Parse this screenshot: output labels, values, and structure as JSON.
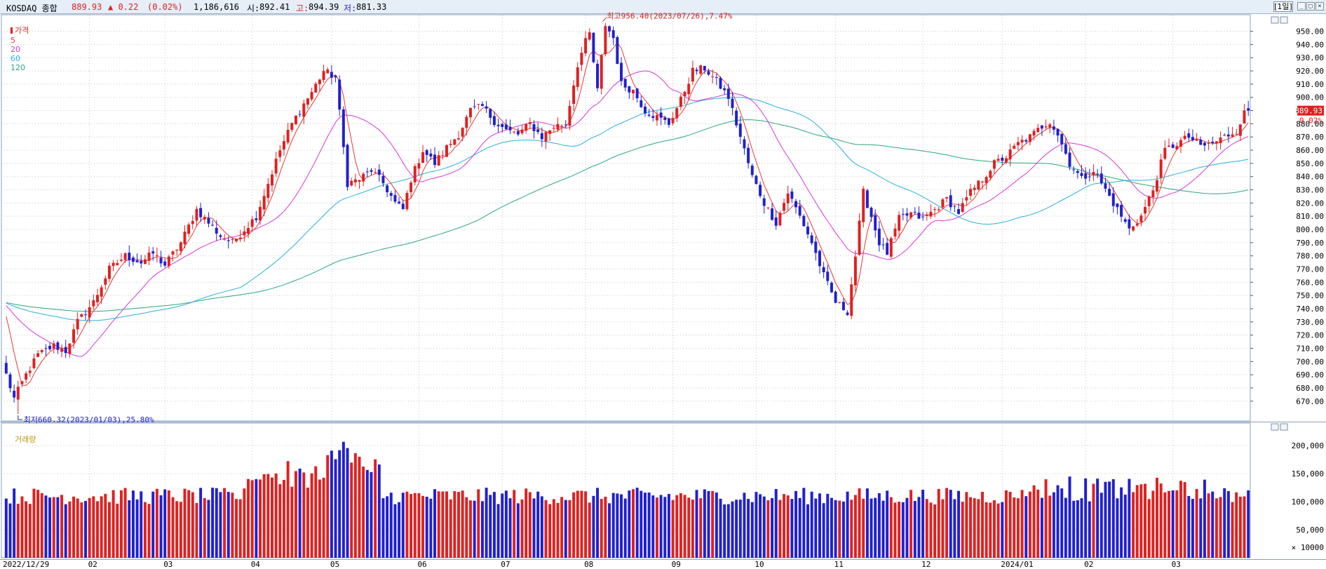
{
  "header": {
    "index_name": "KOSDAQ 종합",
    "price": "889.93",
    "change": "▲ 0.22",
    "change_pct": "(0.02%)",
    "volume": "1,186,616",
    "open_label": "시:",
    "open": "892.41",
    "high_label": "고:",
    "high": "894.39",
    "low_label": "저:",
    "low": "881.33",
    "period_button": "[1일]",
    "colors": {
      "up": "#e02020",
      "down": "#2020d0"
    }
  },
  "price_panel": {
    "legend": {
      "price_label": "가격",
      "ma5_label": "5",
      "ma20_label": "20",
      "ma60_label": "60",
      "ma120_label": "120"
    },
    "max_annotation": "최고956.40(2023/07/26),7.47%",
    "min_annotation": "최저660.32(2023/01/03),25.80%",
    "current_price_tag": "889.93",
    "current_change_tag": "0.02%"
  },
  "volume_panel": {
    "legend": "거래량",
    "unit": "× 10000"
  },
  "chart_data": {
    "type": "candlestick",
    "price_axis": {
      "ticks": [
        "670.00",
        "680.00",
        "690.00",
        "700.00",
        "710.00",
        "720.00",
        "730.00",
        "740.00",
        "750.00",
        "760.00",
        "770.00",
        "780.00",
        "790.00",
        "800.00",
        "810.00",
        "820.00",
        "830.00",
        "840.00",
        "850.00",
        "860.00",
        "870.00",
        "880.00",
        "890.00",
        "900.00",
        "910.00",
        "920.00",
        "930.00",
        "940.00",
        "950.00"
      ],
      "range": [
        655,
        962
      ]
    },
    "volume_axis": {
      "ticks": [
        "50,000",
        "100,000",
        "150,000",
        "200,000"
      ],
      "range": [
        0,
        230000
      ]
    },
    "x_axis_labels": [
      "2022/12/29",
      "02",
      "03",
      "04",
      "05",
      "06",
      "07",
      "08",
      "09",
      "10",
      "11",
      "12",
      "2024/01",
      "02",
      "03"
    ],
    "price_anchors": [
      [
        0,
        690
      ],
      [
        2,
        672
      ],
      [
        5,
        690
      ],
      [
        8,
        705
      ],
      [
        12,
        712
      ],
      [
        15,
        708
      ],
      [
        18,
        730
      ],
      [
        22,
        745
      ],
      [
        26,
        770
      ],
      [
        30,
        780
      ],
      [
        34,
        775
      ],
      [
        37,
        782
      ],
      [
        40,
        773
      ],
      [
        44,
        790
      ],
      [
        48,
        815
      ],
      [
        51,
        805
      ],
      [
        54,
        795
      ],
      [
        57,
        790
      ],
      [
        60,
        800
      ],
      [
        63,
        810
      ],
      [
        66,
        835
      ],
      [
        69,
        860
      ],
      [
        72,
        880
      ],
      [
        75,
        895
      ],
      [
        77,
        904
      ],
      [
        80,
        920
      ],
      [
        83,
        915
      ],
      [
        86,
        835
      ],
      [
        89,
        838
      ],
      [
        92,
        845
      ],
      [
        95,
        835
      ],
      [
        98,
        820
      ],
      [
        100,
        815
      ],
      [
        102,
        838
      ],
      [
        105,
        860
      ],
      [
        108,
        850
      ],
      [
        111,
        862
      ],
      [
        114,
        872
      ],
      [
        117,
        890
      ],
      [
        120,
        893
      ],
      [
        123,
        882
      ],
      [
        126,
        875
      ],
      [
        129,
        872
      ],
      [
        132,
        880
      ],
      [
        135,
        870
      ],
      [
        138,
        878
      ],
      [
        141,
        880
      ],
      [
        144,
        925
      ],
      [
        146,
        942
      ],
      [
        147,
        948
      ],
      [
        149,
        905
      ],
      [
        151,
        955
      ],
      [
        153,
        945
      ],
      [
        155,
        910
      ],
      [
        158,
        905
      ],
      [
        161,
        890
      ],
      [
        164,
        885
      ],
      [
        167,
        880
      ],
      [
        170,
        898
      ],
      [
        173,
        920
      ],
      [
        176,
        922
      ],
      [
        179,
        912
      ],
      [
        182,
        900
      ],
      [
        185,
        870
      ],
      [
        188,
        840
      ],
      [
        191,
        820
      ],
      [
        194,
        805
      ],
      [
        197,
        828
      ],
      [
        200,
        810
      ],
      [
        203,
        790
      ],
      [
        206,
        765
      ],
      [
        209,
        745
      ],
      [
        212,
        738
      ],
      [
        214,
        780
      ],
      [
        216,
        828
      ],
      [
        218,
        810
      ],
      [
        220,
        790
      ],
      [
        222,
        782
      ],
      [
        225,
        808
      ],
      [
        228,
        812
      ],
      [
        231,
        808
      ],
      [
        234,
        815
      ],
      [
        237,
        823
      ],
      [
        240,
        813
      ],
      [
        243,
        828
      ],
      [
        246,
        838
      ],
      [
        249,
        850
      ],
      [
        252,
        855
      ],
      [
        255,
        865
      ],
      [
        258,
        870
      ],
      [
        261,
        878
      ],
      [
        263,
        882
      ],
      [
        265,
        872
      ],
      [
        268,
        850
      ],
      [
        271,
        838
      ],
      [
        274,
        845
      ],
      [
        277,
        830
      ],
      [
        280,
        815
      ],
      [
        283,
        800
      ],
      [
        286,
        810
      ],
      [
        289,
        830
      ],
      [
        292,
        860
      ],
      [
        295,
        865
      ],
      [
        298,
        870
      ],
      [
        301,
        863
      ],
      [
        304,
        865
      ],
      [
        307,
        870
      ],
      [
        310,
        875
      ],
      [
        312,
        888
      ],
      [
        313,
        889.93
      ]
    ],
    "annotations": {
      "max": {
        "value": 956.4,
        "date": "2023/07/26",
        "pct": "7.47%"
      },
      "min": {
        "value": 660.32,
        "date": "2023/01/03",
        "pct": "25.80%"
      },
      "last_close": 889.93
    },
    "series": [
      {
        "name": "가격",
        "kind": "candles"
      },
      {
        "name": "5",
        "kind": "moving_average",
        "color": "#e53935"
      },
      {
        "name": "20",
        "kind": "moving_average",
        "color": "#d63ad6"
      },
      {
        "name": "60",
        "kind": "moving_average",
        "color": "#28b0e0"
      },
      {
        "name": "120",
        "kind": "moving_average",
        "color": "#2aa878"
      },
      {
        "name": "거래량",
        "kind": "volume_bars"
      }
    ]
  }
}
